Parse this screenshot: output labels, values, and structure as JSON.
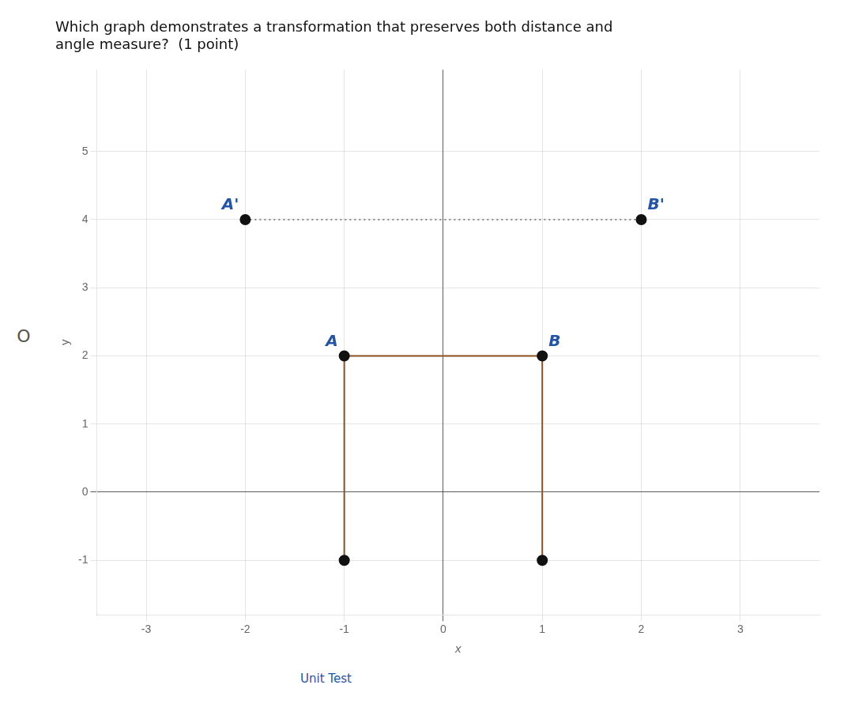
{
  "chart_data": {
    "type": "scatter",
    "title": [
      "Which graph demonstrates a transformation that preserves both distance and",
      "angle measure?  (1 point)"
    ],
    "x_label": "x",
    "y_label": "y",
    "xlim": [
      -3.5,
      3.8
    ],
    "ylim": [
      -1.8,
      6.2
    ],
    "xticks": [
      -3,
      -2,
      -1,
      0,
      1,
      2,
      3
    ],
    "yticks": [
      -1,
      0,
      1,
      2,
      3,
      4,
      5
    ],
    "grid": true,
    "series": [
      {
        "type": "line",
        "color": "#8b5020",
        "line_style": "solid",
        "x": [
          -1,
          1
        ],
        "y": [
          2,
          2
        ]
      },
      {
        "type": "line",
        "color": "#888888",
        "line_style": "dotted",
        "x": [
          -2,
          2
        ],
        "y": [
          4,
          4
        ]
      },
      {
        "type": "line",
        "color": "#8b5020",
        "line_style": "solid",
        "x": [
          -1,
          -1
        ],
        "y": [
          2,
          -1
        ]
      },
      {
        "type": "line",
        "color": "#8b5020",
        "line_style": "solid",
        "x": [
          1,
          1
        ],
        "y": [
          2,
          -1
        ]
      },
      {
        "type": "scatter",
        "color": "#111111",
        "marker": "circle",
        "x": [
          -1,
          1,
          -2,
          2,
          -1,
          1
        ],
        "y": [
          2,
          2,
          4,
          4,
          -1,
          -1
        ]
      }
    ],
    "annotations": [
      {
        "text": "A'",
        "x": -2,
        "y": 4,
        "color": "#2255aa"
      },
      {
        "text": "B'",
        "x": 2,
        "y": 4,
        "color": "#2255aa"
      },
      {
        "text": "A",
        "x": -1,
        "y": 2,
        "color": "#2255aa"
      },
      {
        "text": "B",
        "x": 1,
        "y": 2,
        "color": "#2255aa"
      },
      {
        "text": "O"
      },
      {
        "text": "Unit Test",
        "color": "#2255aa"
      }
    ]
  }
}
